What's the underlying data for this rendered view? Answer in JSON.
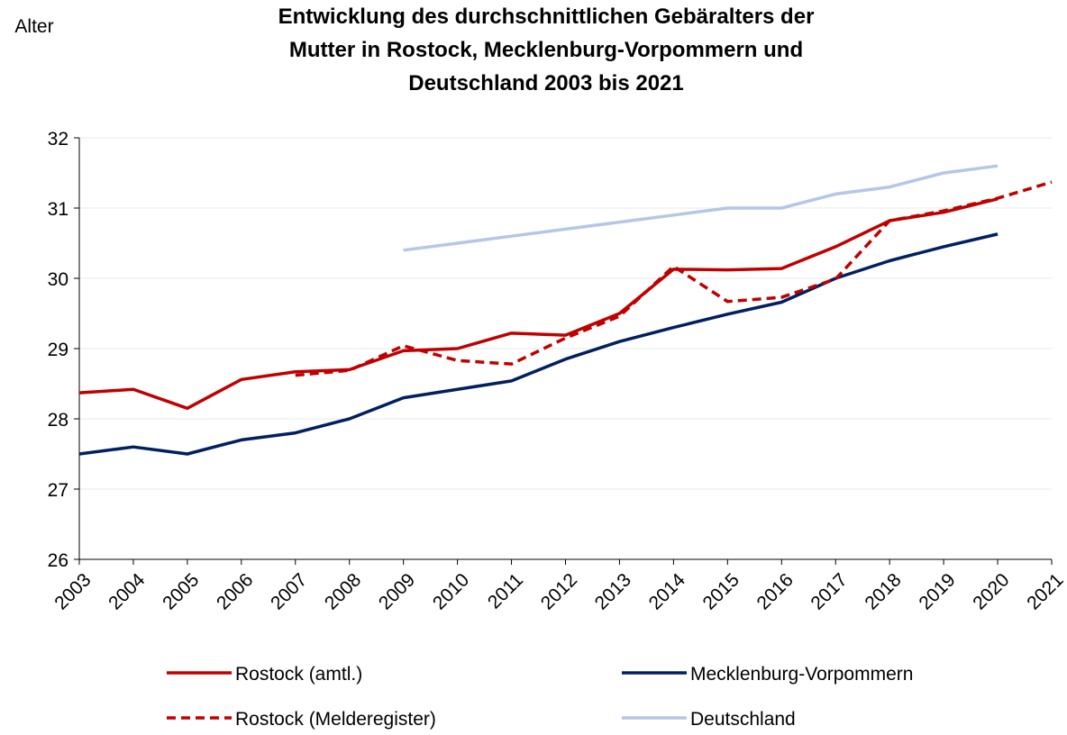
{
  "chart_data": {
    "type": "line",
    "title": "Entwicklung des durchschnittlichen Gebäralters der Mutter in Rostock, Mecklenburg-Vorpommern und Deutschland 2003 bis 2021",
    "title_lines": [
      "Entwicklung des durchschnittlichen Gebäralters der",
      "Mutter in Rostock, Mecklenburg-Vorpommern und",
      "Deutschland 2003 bis 2021"
    ],
    "y_label": "Alter",
    "categories": [
      "2003",
      "2004",
      "2005",
      "2006",
      "2007",
      "2008",
      "2009",
      "2010",
      "2011",
      "2012",
      "2013",
      "2014",
      "2015",
      "2016",
      "2017",
      "2018",
      "2019",
      "2020",
      "2021"
    ],
    "series": [
      {
        "name": "Rostock (amtl.)",
        "color": "#c00000",
        "dash": false,
        "values": [
          28.37,
          28.42,
          28.15,
          28.56,
          28.67,
          28.7,
          28.97,
          29.0,
          29.22,
          29.19,
          29.5,
          30.13,
          30.12,
          30.14,
          30.45,
          30.82,
          30.94,
          31.13,
          null
        ]
      },
      {
        "name": "Mecklenburg-Vorpommern",
        "color": "#002060",
        "dash": false,
        "values": [
          27.5,
          27.6,
          27.5,
          27.7,
          27.8,
          28.0,
          28.3,
          28.42,
          28.54,
          28.85,
          29.1,
          29.3,
          29.49,
          29.66,
          30.0,
          30.25,
          30.45,
          30.63,
          null
        ]
      },
      {
        "name": "Rostock (Melderegister)",
        "color": "#c00000",
        "dash": true,
        "values": [
          null,
          null,
          null,
          null,
          28.62,
          28.69,
          29.04,
          28.83,
          28.78,
          29.15,
          29.46,
          30.17,
          29.67,
          29.73,
          29.99,
          30.82,
          30.96,
          31.14,
          31.37
        ]
      },
      {
        "name": "Deutschland",
        "color": "#b4c7e7",
        "dash": false,
        "values": [
          null,
          null,
          null,
          null,
          null,
          null,
          30.4,
          30.5,
          30.6,
          30.7,
          30.8,
          30.9,
          31.0,
          31.0,
          31.2,
          31.3,
          31.5,
          31.6,
          null
        ]
      }
    ],
    "ylim": [
      26,
      32
    ],
    "yticks": [
      26,
      27,
      28,
      29,
      30,
      31,
      32
    ],
    "grid": true
  }
}
